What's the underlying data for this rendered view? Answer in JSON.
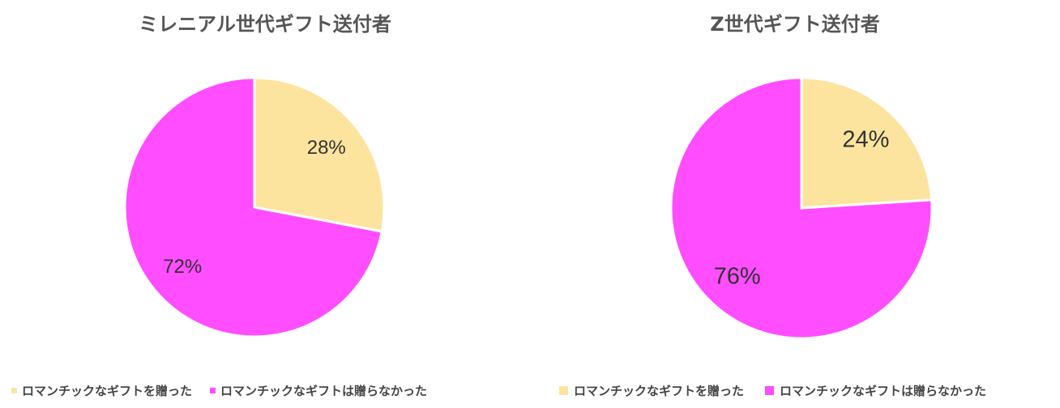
{
  "colors": {
    "gave": "#fce49e",
    "not_gave": "#ff4dff"
  },
  "chart_data": [
    {
      "type": "pie",
      "title": "ミレニアル世代ギフト送付者",
      "categories": [
        "ロマンチックなギフトを贈った",
        "ロマンチックなギフトは贈らなかった"
      ],
      "values": [
        28,
        72
      ],
      "data_labels": [
        "28%",
        "72%"
      ],
      "legend_position": "bottom"
    },
    {
      "type": "pie",
      "title": "Z世代ギフト送付者",
      "categories": [
        "ロマンチックなギフトを贈った",
        "ロマンチックなギフトは贈らなかった"
      ],
      "values": [
        24,
        76
      ],
      "data_labels": [
        "24%",
        "76%"
      ],
      "legend_position": "bottom"
    }
  ]
}
